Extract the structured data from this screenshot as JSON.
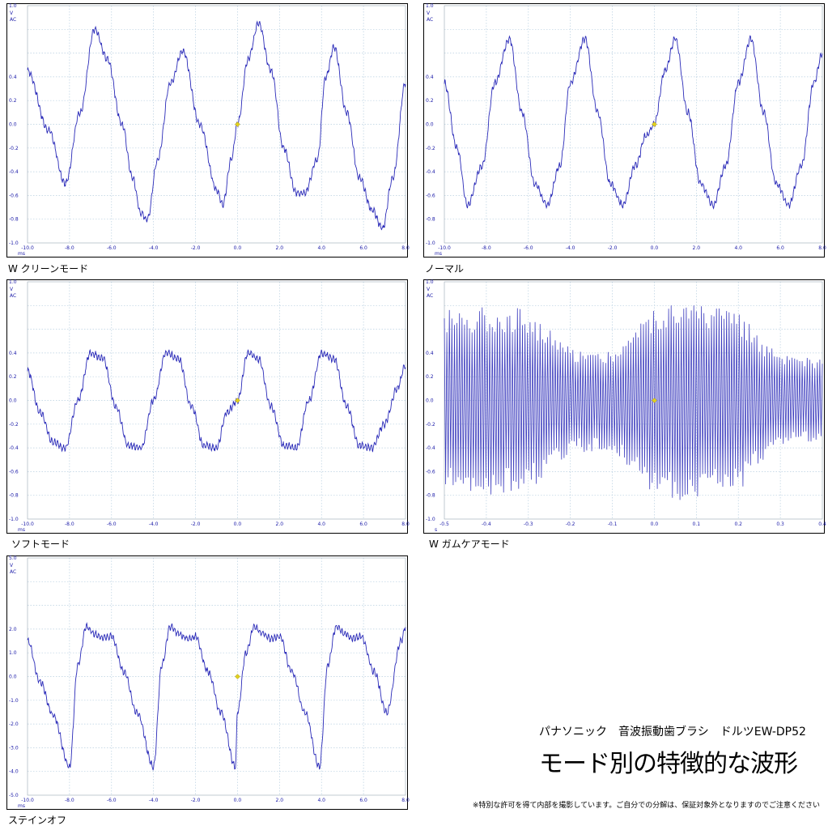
{
  "heading": {
    "subtitle": "パナソニック　音波振動歯ブラシ　ドルツEW-DP52",
    "title": "モード別の特徴的な波形",
    "note": "※特別な許可を得て内部を撮影しています。ご自分での分解は、保証対象外となりますのでご注意ください"
  },
  "colors": {
    "trace": "#2a2ab8",
    "grid": "#b8cfe0",
    "frame": "#000000",
    "marker": "#e0d020",
    "label": "#1a1aa8"
  },
  "chart_data": [
    {
      "type": "line",
      "title": "W クリーンモード",
      "y_unit": "V",
      "y_mode": "AC",
      "x_unit": "ms",
      "xlim": [
        -10,
        8
      ],
      "ylim": [
        -1.0,
        1.0
      ],
      "x_ticks": [
        -10,
        -8,
        -6,
        -4,
        -2,
        0,
        2,
        4,
        6,
        8
      ],
      "x_tick_labels": [
        "-10.0",
        "-8.0",
        "-6.0",
        "-4.0",
        "-2.0",
        "0.0",
        "2.0",
        "4.0",
        "6.0",
        "8.0"
      ],
      "y_ticks": [
        1.0,
        0.8,
        0.6,
        0.4,
        0.2,
        0.0,
        -0.2,
        -0.4,
        -0.6,
        -0.8,
        -1.0
      ],
      "y_tick_labels": [
        "1.0",
        "0.8",
        "0.6",
        "0.4",
        "0.2",
        "0.0",
        "-0.2",
        "-0.4",
        "-0.6",
        "-0.8",
        "-1.0"
      ],
      "grid": true,
      "series": [
        {
          "x": [
            -10.0,
            -9.0,
            -8.2,
            -7.5,
            -6.8,
            -6.2,
            -5.5,
            -5.0,
            -4.6,
            -4.3,
            -3.8,
            -3.2,
            -2.6,
            -1.8,
            -1.0,
            -0.7,
            -0.3,
            0.0,
            0.5,
            1.0,
            1.6,
            2.2,
            2.8,
            3.2,
            3.8,
            4.2,
            4.6,
            5.2,
            5.8,
            6.4,
            6.9,
            7.4,
            8.0
          ],
          "y": [
            0.45,
            -0.05,
            -0.5,
            0.1,
            0.8,
            0.55,
            0.0,
            -0.45,
            -0.75,
            -0.8,
            -0.3,
            0.35,
            0.62,
            0.0,
            -0.55,
            -0.68,
            -0.3,
            0.0,
            0.55,
            0.85,
            0.45,
            -0.2,
            -0.58,
            -0.58,
            -0.3,
            0.4,
            0.65,
            0.1,
            -0.45,
            -0.72,
            -0.88,
            -0.45,
            0.35
          ]
        }
      ],
      "marker_point": [
        0.0,
        0.0
      ]
    },
    {
      "type": "line",
      "title": "ノーマル",
      "y_unit": "V",
      "y_mode": "AC",
      "x_unit": "ms",
      "xlim": [
        -10,
        8
      ],
      "ylim": [
        -1.0,
        1.0
      ],
      "x_ticks": [
        -10,
        -8,
        -6,
        -4,
        -2,
        0,
        2,
        4,
        6,
        8
      ],
      "x_tick_labels": [
        "-10.0",
        "-8.0",
        "-6.0",
        "-4.0",
        "-2.0",
        "0.0",
        "2.0",
        "4.0",
        "6.0",
        "8.0"
      ],
      "y_ticks": [
        1.0,
        0.8,
        0.6,
        0.4,
        0.2,
        0.0,
        -0.2,
        -0.4,
        -0.6,
        -0.8,
        -1.0
      ],
      "y_tick_labels": [
        "1.0",
        "0.8",
        "0.6",
        "0.4",
        "0.2",
        "0.0",
        "-0.2",
        "-0.4",
        "-0.6",
        "-0.8",
        "-1.0"
      ],
      "grid": true,
      "series": [
        {
          "x": [
            -10.0,
            -9.4,
            -8.9,
            -8.2,
            -7.6,
            -6.9,
            -6.3,
            -5.7,
            -5.1,
            -4.5,
            -4.0,
            -3.3,
            -2.7,
            -2.1,
            -1.5,
            -0.9,
            -0.4,
            0.0,
            0.5,
            1.0,
            1.6,
            2.2,
            2.8,
            3.4,
            4.0,
            4.6,
            5.2,
            5.8,
            6.4,
            7.0,
            7.6,
            8.0
          ],
          "y": [
            0.35,
            -0.2,
            -0.68,
            -0.35,
            0.35,
            0.72,
            0.1,
            -0.5,
            -0.68,
            -0.35,
            0.35,
            0.72,
            0.1,
            -0.5,
            -0.68,
            -0.35,
            -0.1,
            0.0,
            0.45,
            0.72,
            0.1,
            -0.5,
            -0.68,
            -0.35,
            0.35,
            0.72,
            0.1,
            -0.5,
            -0.68,
            -0.35,
            0.35,
            0.6
          ]
        }
      ],
      "marker_point": [
        0.0,
        0.0
      ]
    },
    {
      "type": "line",
      "title": "ソフトモード",
      "y_unit": "V",
      "y_mode": "AC",
      "x_unit": "ms",
      "xlim": [
        -10,
        8
      ],
      "ylim": [
        -1.0,
        1.0
      ],
      "x_ticks": [
        -10,
        -8,
        -6,
        -4,
        -2,
        0,
        2,
        4,
        6,
        8
      ],
      "x_tick_labels": [
        "-10.0",
        "-8.0",
        "-6.0",
        "-4.0",
        "-2.0",
        "0.0",
        "2.0",
        "4.0",
        "6.0",
        "8.0"
      ],
      "y_ticks": [
        1.0,
        0.8,
        0.6,
        0.4,
        0.2,
        0.0,
        -0.2,
        -0.4,
        -0.6,
        -0.8,
        -1.0
      ],
      "y_tick_labels": [
        "1.0",
        "0.8",
        "0.6",
        "0.4",
        "0.2",
        "0.0",
        "-0.2",
        "-0.4",
        "-0.6",
        "-0.8",
        "-1.0"
      ],
      "grid": true,
      "series": [
        {
          "x": [
            -10.0,
            -9.4,
            -8.8,
            -8.2,
            -7.6,
            -7.0,
            -6.4,
            -5.8,
            -5.2,
            -4.6,
            -4.0,
            -3.4,
            -2.8,
            -2.2,
            -1.6,
            -1.0,
            -0.5,
            0.0,
            0.5,
            1.0,
            1.6,
            2.2,
            2.8,
            3.4,
            4.0,
            4.6,
            5.2,
            5.8,
            6.4,
            7.0,
            7.6,
            8.0
          ],
          "y": [
            0.25,
            -0.1,
            -0.35,
            -0.4,
            0.0,
            0.4,
            0.35,
            -0.05,
            -0.38,
            -0.4,
            0.0,
            0.4,
            0.35,
            -0.05,
            -0.38,
            -0.4,
            -0.1,
            0.0,
            0.4,
            0.35,
            -0.05,
            -0.38,
            -0.4,
            0.0,
            0.4,
            0.35,
            -0.05,
            -0.38,
            -0.4,
            -0.2,
            0.1,
            0.3
          ]
        }
      ],
      "marker_point": [
        0.0,
        0.0
      ]
    },
    {
      "type": "line",
      "title": "W ガムケアモード",
      "y_unit": "V",
      "y_mode": "AC",
      "x_unit": "s",
      "xlim": [
        -0.5,
        0.4
      ],
      "ylim": [
        -1.0,
        1.0
      ],
      "x_ticks": [
        -0.5,
        -0.4,
        -0.3,
        -0.2,
        -0.1,
        0.0,
        0.1,
        0.2,
        0.3,
        0.4
      ],
      "x_tick_labels": [
        "-0.5",
        "-0.4",
        "-0.3",
        "-0.2",
        "-0.1",
        "0.0",
        "0.1",
        "0.2",
        "0.3",
        "0.4"
      ],
      "y_ticks": [
        1.0,
        0.8,
        0.6,
        0.4,
        0.2,
        0.0,
        -0.2,
        -0.4,
        -0.6,
        -0.8,
        -1.0
      ],
      "y_tick_labels": [
        "1.0",
        "0.8",
        "0.6",
        "0.4",
        "0.2",
        "0.0",
        "-0.2",
        "-0.4",
        "-0.6",
        "-0.8",
        "-1.0"
      ],
      "grid": true,
      "envelope": {
        "t": [
          -0.5,
          -0.4,
          -0.3,
          -0.25,
          -0.2,
          -0.1,
          0.0,
          0.05,
          0.1,
          0.2,
          0.25,
          0.3,
          0.4
        ],
        "amplitude": [
          0.78,
          0.8,
          0.78,
          0.6,
          0.45,
          0.42,
          0.8,
          0.85,
          0.82,
          0.78,
          0.55,
          0.38,
          0.35
        ]
      },
      "marker_point": [
        0.0,
        0.0
      ]
    },
    {
      "type": "line",
      "title": "ステインオフ",
      "y_unit": "V",
      "y_mode": "AC",
      "x_unit": "ms",
      "xlim": [
        -10,
        8
      ],
      "ylim": [
        -5.0,
        5.0
      ],
      "x_ticks": [
        -10,
        -8,
        -6,
        -4,
        -2,
        0,
        2,
        4,
        6,
        8
      ],
      "x_tick_labels": [
        "-10.0",
        "-8.0",
        "-6.0",
        "-4.0",
        "-2.0",
        "0.0",
        "2.0",
        "4.0",
        "6.0",
        "8.0"
      ],
      "y_ticks": [
        5.0,
        4.0,
        3.0,
        2.0,
        1.0,
        0.0,
        -1.0,
        -2.0,
        -3.0,
        -4.0,
        -5.0
      ],
      "y_tick_labels": [
        "5.0",
        "4.0",
        "3.0",
        "2.0",
        "1.0",
        "0.0",
        "-1.0",
        "-2.0",
        "-3.0",
        "-4.0",
        "-5.0"
      ],
      "grid": true,
      "series": [
        {
          "x": [
            -10.0,
            -9.4,
            -8.8,
            -8.0,
            -7.6,
            -7.2,
            -6.8,
            -6.4,
            -6.0,
            -5.4,
            -4.8,
            -4.0,
            -3.6,
            -3.2,
            -2.8,
            -2.4,
            -2.0,
            -1.4,
            -0.8,
            -0.1,
            0.0,
            0.4,
            0.8,
            1.2,
            1.6,
            2.0,
            2.6,
            3.2,
            3.9,
            4.3,
            4.7,
            5.1,
            5.5,
            5.9,
            6.5,
            7.1,
            7.8,
            8.0
          ],
          "y": [
            1.5,
            -0.2,
            -1.6,
            -3.8,
            0.5,
            2.1,
            1.8,
            1.6,
            1.7,
            0.2,
            -1.5,
            -3.8,
            0.5,
            2.1,
            1.8,
            1.6,
            1.7,
            0.2,
            -1.5,
            -3.8,
            -1.5,
            1.0,
            2.1,
            1.8,
            1.6,
            1.7,
            0.2,
            -1.5,
            -3.8,
            0.5,
            2.1,
            1.8,
            1.6,
            1.7,
            0.2,
            -1.5,
            1.5,
            2.1
          ]
        }
      ],
      "marker_point": [
        0.0,
        0.0
      ]
    }
  ]
}
